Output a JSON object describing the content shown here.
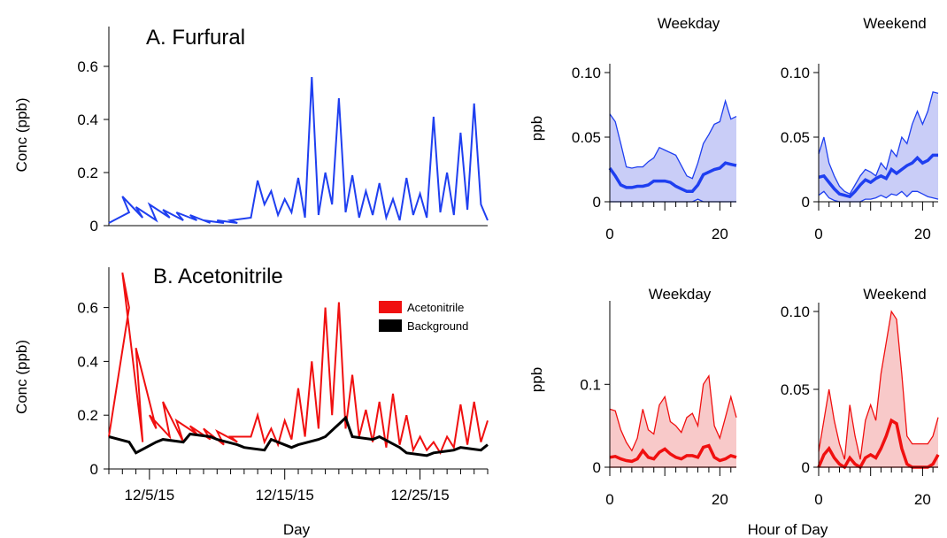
{
  "chart_data": [
    {
      "id": "A",
      "type": "line",
      "title": "A. Furfural",
      "ylabel": "Conc (ppb)",
      "xlabel": "",
      "ylim": [
        0,
        0.75
      ],
      "yticks": [
        0,
        0.2,
        0.4,
        0.6
      ],
      "ytick_labels": [
        "0",
        "0.2",
        "0.4",
        "0.6"
      ],
      "xlim": [
        "2015-12-02",
        "2015-12-30"
      ],
      "grid": false,
      "series": [
        {
          "color": "#1f3ff0",
          "x": [
            "12/2",
            "12/3",
            "12/3",
            "12/4",
            "12/4",
            "12/5",
            "12/5",
            "12/6",
            "12/6",
            "12/7",
            "12/7",
            "12/8",
            "12/8",
            "12/9",
            "12/9",
            "12/10",
            "12/10",
            "12/11",
            "12/11",
            "12/12",
            "12/13",
            "12/13",
            "12/14",
            "12/14",
            "12/15",
            "12/15",
            "12/16",
            "12/16",
            "12/17",
            "12/17",
            "12/18",
            "12/18",
            "12/19",
            "12/19",
            "12/20",
            "12/20",
            "12/21",
            "12/21",
            "12/22",
            "12/22",
            "12/23",
            "12/23",
            "12/24",
            "12/24",
            "12/25",
            "12/25",
            "12/26",
            "12/26",
            "12/27",
            "12/27",
            "12/28",
            "12/28",
            "12/29",
            "12/29",
            "12/30"
          ],
          "y": [
            0.01,
            0.05,
            0.11,
            0.03,
            0.07,
            0.02,
            0.08,
            0.03,
            0.06,
            0.02,
            0.05,
            0.02,
            0.04,
            0.01,
            0.02,
            0.01,
            0.02,
            0.01,
            0.02,
            0.03,
            0.17,
            0.08,
            0.13,
            0.04,
            0.1,
            0.05,
            0.18,
            0.03,
            0.56,
            0.04,
            0.2,
            0.08,
            0.48,
            0.05,
            0.19,
            0.03,
            0.13,
            0.04,
            0.16,
            0.03,
            0.1,
            0.02,
            0.18,
            0.04,
            0.12,
            0.03,
            0.41,
            0.05,
            0.2,
            0.04,
            0.35,
            0.06,
            0.46,
            0.08,
            0.02
          ]
        }
      ]
    },
    {
      "id": "B",
      "type": "line",
      "title": "B. Acetonitrile",
      "ylabel": "Conc (ppb)",
      "xlabel": "Day",
      "ylim": [
        0,
        0.75
      ],
      "yticks": [
        0,
        0.2,
        0.4,
        0.6
      ],
      "ytick_labels": [
        "0",
        "0.2",
        "0.4",
        "0.6"
      ],
      "xlim": [
        "2015-12-02",
        "2015-12-30"
      ],
      "xtick_labels": [
        "12/5/15",
        "12/15/15",
        "12/25/15"
      ],
      "grid": false,
      "legend_position": "top-right",
      "series": [
        {
          "name": "Acetonitrile",
          "color": "#f01010",
          "x": [
            "12/2",
            "12/3",
            "12/3",
            "12/4",
            "12/4",
            "12/5",
            "12/5",
            "12/6",
            "12/6",
            "12/7",
            "12/7",
            "12/8",
            "12/8",
            "12/9",
            "12/9",
            "12/10",
            "12/10",
            "12/11",
            "12/11",
            "12/12",
            "12/13",
            "12/13",
            "12/14",
            "12/14",
            "12/15",
            "12/15",
            "12/16",
            "12/16",
            "12/17",
            "12/17",
            "12/18",
            "12/18",
            "12/19",
            "12/19",
            "12/20",
            "12/20",
            "12/21",
            "12/21",
            "12/22",
            "12/22",
            "12/23",
            "12/23",
            "12/24",
            "12/24",
            "12/25",
            "12/25",
            "12/26",
            "12/26",
            "12/27",
            "12/27",
            "12/28",
            "12/28",
            "12/29",
            "12/29",
            "12/30"
          ],
          "y": [
            0.12,
            0.6,
            0.73,
            0.1,
            0.45,
            0.15,
            0.2,
            0.12,
            0.25,
            0.1,
            0.18,
            0.13,
            0.16,
            0.11,
            0.15,
            0.09,
            0.14,
            0.1,
            0.12,
            0.12,
            0.2,
            0.1,
            0.15,
            0.09,
            0.18,
            0.11,
            0.3,
            0.12,
            0.4,
            0.15,
            0.6,
            0.2,
            0.62,
            0.15,
            0.35,
            0.12,
            0.22,
            0.1,
            0.25,
            0.08,
            0.28,
            0.09,
            0.2,
            0.07,
            0.12,
            0.07,
            0.1,
            0.06,
            0.12,
            0.08,
            0.24,
            0.09,
            0.25,
            0.1,
            0.18
          ]
        },
        {
          "name": "Background",
          "color": "#000000",
          "x": [
            "12/2",
            "12/3",
            "12/4",
            "12/5",
            "12/6",
            "12/7",
            "12/8",
            "12/9",
            "12/10",
            "12/11",
            "12/12",
            "12/13",
            "12/14",
            "12/15",
            "12/16",
            "12/17",
            "12/18",
            "12/19",
            "12/20",
            "12/21",
            "12/22",
            "12/23",
            "12/24",
            "12/25",
            "12/26",
            "12/27",
            "12/28",
            "12/29",
            "12/30"
          ],
          "y": [
            0.12,
            0.1,
            0.06,
            0.1,
            0.11,
            0.1,
            0.13,
            0.12,
            0.11,
            0.09,
            0.08,
            0.07,
            0.11,
            0.08,
            0.09,
            0.11,
            0.12,
            0.19,
            0.12,
            0.11,
            0.12,
            0.08,
            0.06,
            0.05,
            0.06,
            0.07,
            0.08,
            0.07,
            0.09
          ]
        }
      ]
    },
    {
      "id": "C1",
      "type": "area",
      "title": "Weekday",
      "ylabel": "ppb",
      "xlabel": "",
      "xlim": [
        0,
        23
      ],
      "ylim": [
        0,
        0.1
      ],
      "yticks": [
        0,
        0.05,
        0.1
      ],
      "ytick_labels": [
        "0",
        "0.05",
        "0.10"
      ],
      "xtick_labels": [
        "0",
        "20"
      ],
      "series": [
        {
          "name": "",
          "color": "#1f3ff0",
          "x": [
            0,
            1,
            2,
            3,
            4,
            5,
            6,
            7,
            8,
            9,
            10,
            11,
            12,
            13,
            14,
            15,
            16,
            17,
            18,
            19,
            20,
            21,
            22,
            23
          ],
          "upper": [
            0.068,
            0.062,
            0.045,
            0.027,
            0.026,
            0.027,
            0.027,
            0.031,
            0.034,
            0.042,
            0.04,
            0.038,
            0.036,
            0.028,
            0.02,
            0.018,
            0.03,
            0.045,
            0.052,
            0.06,
            0.062,
            0.078,
            0.064,
            0.066
          ],
          "median": [
            0.026,
            0.02,
            0.013,
            0.011,
            0.011,
            0.012,
            0.012,
            0.013,
            0.016,
            0.016,
            0.016,
            0.015,
            0.012,
            0.01,
            0.008,
            0.008,
            0.013,
            0.021,
            0.023,
            0.025,
            0.026,
            0.03,
            0.029,
            0.028
          ],
          "lower": [
            0,
            0,
            0,
            0,
            0,
            0,
            0,
            0,
            0,
            0,
            0,
            0,
            0,
            0,
            0,
            0,
            0.002,
            0,
            0,
            0,
            0,
            0,
            0,
            0
          ]
        }
      ]
    },
    {
      "id": "C2",
      "type": "area",
      "title": "Weekend",
      "ylabel": "",
      "xlabel": "",
      "xlim": [
        0,
        23
      ],
      "ylim": [
        0,
        0.1
      ],
      "yticks": [
        0,
        0.05,
        0.1
      ],
      "ytick_labels": [
        "0",
        "0.05",
        "0.10"
      ],
      "xtick_labels": [
        "0",
        "20"
      ],
      "series": [
        {
          "name": "",
          "color": "#1f3ff0",
          "x": [
            0,
            1,
            2,
            3,
            4,
            5,
            6,
            7,
            8,
            9,
            10,
            11,
            12,
            13,
            14,
            15,
            16,
            17,
            18,
            19,
            20,
            21,
            22,
            23
          ],
          "upper": [
            0.037,
            0.05,
            0.03,
            0.02,
            0.012,
            0.008,
            0.006,
            0.013,
            0.02,
            0.025,
            0.023,
            0.02,
            0.03,
            0.025,
            0.04,
            0.035,
            0.05,
            0.045,
            0.06,
            0.07,
            0.06,
            0.07,
            0.085,
            0.084
          ],
          "median": [
            0.019,
            0.02,
            0.015,
            0.01,
            0.006,
            0.005,
            0.004,
            0.008,
            0.013,
            0.017,
            0.015,
            0.018,
            0.02,
            0.018,
            0.025,
            0.022,
            0.025,
            0.028,
            0.03,
            0.034,
            0.03,
            0.032,
            0.036,
            0.036
          ],
          "lower": [
            0.005,
            0.008,
            0.003,
            0.001,
            0,
            0,
            0,
            0,
            0,
            0.002,
            0.002,
            0.003,
            0.005,
            0.003,
            0.006,
            0.005,
            0.008,
            0.004,
            0.008,
            0.008,
            0.006,
            0.004,
            0.003,
            0.002
          ]
        }
      ]
    },
    {
      "id": "D1",
      "type": "area",
      "title": "Weekday",
      "ylabel": "ppb",
      "xlabel": "",
      "xlim": [
        0,
        23
      ],
      "ylim": [
        0,
        0.19
      ],
      "yticks": [
        0,
        0.1
      ],
      "ytick_labels": [
        "0",
        "0.1"
      ],
      "xtick_labels": [
        "0",
        "20"
      ],
      "series": [
        {
          "name": "",
          "color": "#f01010",
          "x": [
            0,
            1,
            2,
            3,
            4,
            5,
            6,
            7,
            8,
            9,
            10,
            11,
            12,
            13,
            14,
            15,
            16,
            17,
            18,
            19,
            20,
            21,
            22,
            23
          ],
          "upper": [
            0.07,
            0.068,
            0.045,
            0.03,
            0.02,
            0.035,
            0.07,
            0.045,
            0.04,
            0.075,
            0.085,
            0.055,
            0.05,
            0.042,
            0.06,
            0.065,
            0.05,
            0.1,
            0.11,
            0.05,
            0.035,
            0.06,
            0.085,
            0.06
          ],
          "median": [
            0.012,
            0.013,
            0.01,
            0.008,
            0.007,
            0.01,
            0.02,
            0.012,
            0.01,
            0.018,
            0.022,
            0.016,
            0.012,
            0.01,
            0.014,
            0.014,
            0.012,
            0.024,
            0.026,
            0.012,
            0.008,
            0.01,
            0.014,
            0.012
          ],
          "lower": [
            0,
            0,
            0,
            0,
            0,
            0,
            0,
            0,
            0,
            0,
            0,
            0,
            0,
            0,
            0,
            0,
            0,
            0,
            0,
            0,
            0,
            0,
            0,
            0
          ]
        }
      ]
    },
    {
      "id": "D2",
      "type": "area",
      "title": "Weekend",
      "ylabel": "",
      "xlabel": "",
      "xlim": [
        0,
        23
      ],
      "ylim": [
        0,
        0.1
      ],
      "yticks": [
        0,
        0.05,
        0.1
      ],
      "ytick_labels": [
        "0",
        "0.05",
        "0.10"
      ],
      "xtick_labels": [
        "0",
        "20"
      ],
      "series": [
        {
          "name": "",
          "color": "#f01010",
          "x": [
            0,
            1,
            2,
            3,
            4,
            5,
            6,
            7,
            8,
            9,
            10,
            11,
            12,
            13,
            14,
            15,
            16,
            17,
            18,
            19,
            20,
            21,
            22,
            23
          ],
          "upper": [
            0.01,
            0.03,
            0.05,
            0.03,
            0.015,
            0.005,
            0.04,
            0.02,
            0.005,
            0.03,
            0.04,
            0.03,
            0.06,
            0.08,
            0.1,
            0.095,
            0.06,
            0.02,
            0.015,
            0.015,
            0.015,
            0.015,
            0.02,
            0.032
          ],
          "median": [
            0,
            0.008,
            0.012,
            0.006,
            0.002,
            0,
            0.006,
            0.002,
            0,
            0.006,
            0.008,
            0.006,
            0.012,
            0.02,
            0.03,
            0.028,
            0.012,
            0.002,
            0,
            0,
            0,
            0,
            0.002,
            0.008
          ],
          "lower": [
            0,
            0,
            0,
            0,
            0,
            0,
            0,
            0,
            0,
            0,
            0,
            0,
            0,
            0,
            0,
            0,
            0,
            0,
            0,
            0,
            0,
            0,
            0,
            0
          ]
        }
      ]
    }
  ],
  "shared": {
    "right_xlabel": "Hour of Day"
  }
}
